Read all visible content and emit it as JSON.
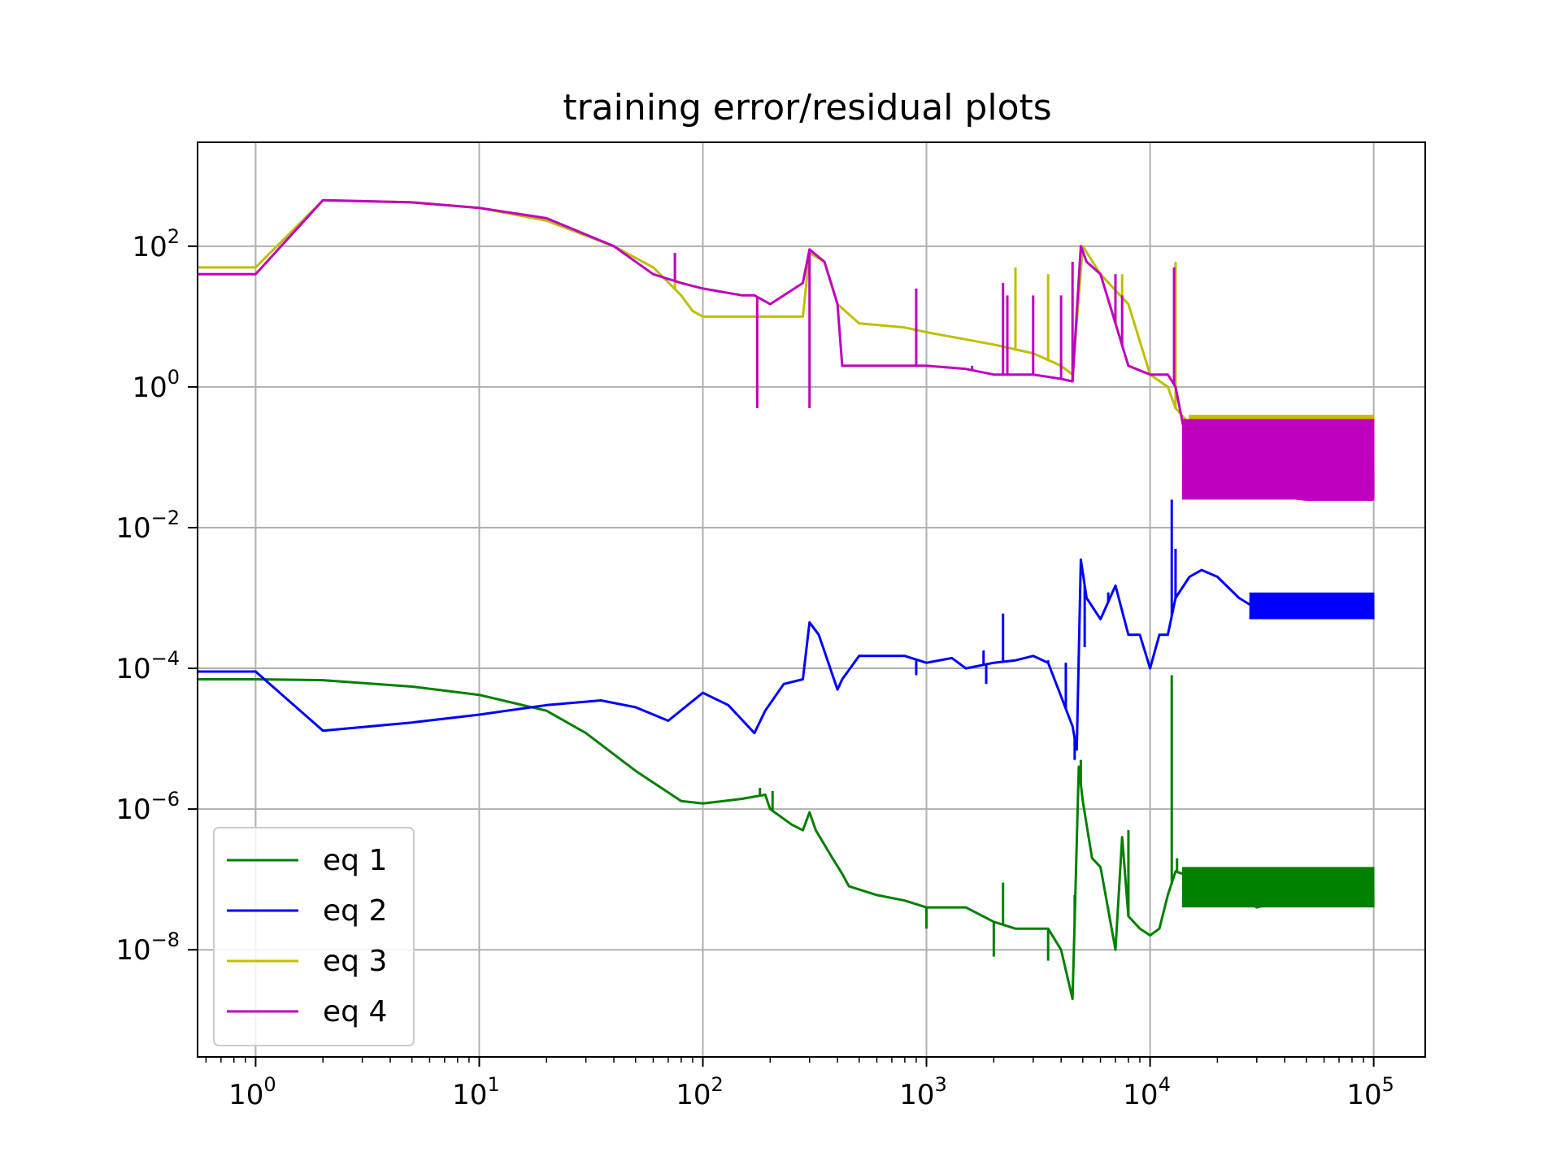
{
  "chart_data": {
    "type": "line",
    "title": "training error/residual plots",
    "xlabel": "",
    "ylabel": "",
    "xscale": "log",
    "yscale": "log",
    "xlim": [
      0.55,
      170000
    ],
    "ylim": [
      3e-10,
      3000
    ],
    "grid": true,
    "legend_position": "lower-left",
    "x_ticks": [
      {
        "value": 1,
        "base": "10",
        "exp": "0"
      },
      {
        "value": 10,
        "base": "10",
        "exp": "1"
      },
      {
        "value": 100,
        "base": "10",
        "exp": "2"
      },
      {
        "value": 1000,
        "base": "10",
        "exp": "3"
      },
      {
        "value": 10000,
        "base": "10",
        "exp": "4"
      },
      {
        "value": 100000,
        "base": "10",
        "exp": "5"
      }
    ],
    "y_ticks": [
      {
        "value": 100,
        "base": "10",
        "exp": "2"
      },
      {
        "value": 1,
        "base": "10",
        "exp": "0"
      },
      {
        "value": 0.01,
        "base": "10",
        "exp": "−2"
      },
      {
        "value": 0.0001,
        "base": "10",
        "exp": "−4"
      },
      {
        "value": 1e-06,
        "base": "10",
        "exp": "−6"
      },
      {
        "value": 1e-08,
        "base": "10",
        "exp": "−8"
      }
    ],
    "series": [
      {
        "name": "eq 1",
        "color": "#008000",
        "points": [
          [
            0.55,
            7e-05
          ],
          [
            1,
            7e-05
          ],
          [
            2,
            6.8e-05
          ],
          [
            5,
            5.5e-05
          ],
          [
            10,
            4.2e-05
          ],
          [
            20,
            2.5e-05
          ],
          [
            30,
            1.2e-05
          ],
          [
            50,
            3.5e-06
          ],
          [
            80,
            1.3e-06
          ],
          [
            100,
            1.2e-06
          ],
          [
            150,
            1.4e-06
          ],
          [
            190,
            1.6e-06
          ],
          [
            200,
            1e-06
          ],
          [
            250,
            6e-07
          ],
          [
            280,
            5e-07
          ],
          [
            300,
            9e-07
          ],
          [
            320,
            5e-07
          ],
          [
            380,
            2e-07
          ],
          [
            420,
            1.2e-07
          ],
          [
            450,
            8e-08
          ],
          [
            600,
            6e-08
          ],
          [
            800,
            5e-08
          ],
          [
            1000,
            4e-08
          ],
          [
            1500,
            4e-08
          ],
          [
            2000,
            2.5e-08
          ],
          [
            2500,
            2e-08
          ],
          [
            3000,
            2e-08
          ],
          [
            3500,
            2e-08
          ],
          [
            4000,
            1e-08
          ],
          [
            4500,
            2e-09
          ],
          [
            4800,
            4e-06
          ],
          [
            5000,
            1.3e-06
          ],
          [
            5500,
            2e-07
          ],
          [
            6000,
            1.5e-07
          ],
          [
            7000,
            1e-08
          ],
          [
            7500,
            4e-07
          ],
          [
            8000,
            3e-08
          ],
          [
            9000,
            2e-08
          ],
          [
            10000,
            1.6e-08
          ],
          [
            11000,
            2e-08
          ],
          [
            12000,
            6e-08
          ],
          [
            13000,
            1.3e-07
          ],
          [
            14000,
            1.2e-07
          ],
          [
            17000,
            1.3e-07
          ],
          [
            20000,
            1e-07
          ],
          [
            25000,
            6e-08
          ],
          [
            30000,
            4e-08
          ],
          [
            40000,
            5e-08
          ],
          [
            60000,
            6e-08
          ],
          [
            80000,
            7e-08
          ],
          [
            100000,
            7e-08
          ]
        ],
        "spikes": [
          [
            180,
            2e-06
          ],
          [
            205,
            1.8e-06
          ],
          [
            1000,
            2e-08
          ],
          [
            2000,
            8e-09
          ],
          [
            2200,
            9e-08
          ],
          [
            3500,
            7e-09
          ],
          [
            4600,
            6e-08
          ],
          [
            4900,
            5e-06
          ],
          [
            6500,
            4e-08
          ],
          [
            8000,
            5e-07
          ],
          [
            12500,
            8e-05
          ],
          [
            13200,
            2e-07
          ]
        ],
        "noise": {
          "from": 14000,
          "to": 100000,
          "low": 4e-08,
          "high": 1.5e-07
        }
      },
      {
        "name": "eq 2",
        "color": "#0000ff",
        "points": [
          [
            0.55,
            9e-05
          ],
          [
            1,
            9e-05
          ],
          [
            2,
            1.3e-05
          ],
          [
            5,
            1.7e-05
          ],
          [
            10,
            2.2e-05
          ],
          [
            20,
            3e-05
          ],
          [
            35,
            3.5e-05
          ],
          [
            50,
            2.8e-05
          ],
          [
            70,
            1.8e-05
          ],
          [
            100,
            4.5e-05
          ],
          [
            130,
            3e-05
          ],
          [
            170,
            1.2e-05
          ],
          [
            190,
            2.5e-05
          ],
          [
            230,
            6e-05
          ],
          [
            280,
            7e-05
          ],
          [
            300,
            0.00045
          ],
          [
            330,
            0.0003
          ],
          [
            400,
            5e-05
          ],
          [
            420,
            7e-05
          ],
          [
            500,
            0.00015
          ],
          [
            800,
            0.00015
          ],
          [
            1000,
            0.00012
          ],
          [
            1300,
            0.00014
          ],
          [
            1500,
            0.0001
          ],
          [
            2000,
            0.00012
          ],
          [
            2500,
            0.00013
          ],
          [
            3000,
            0.00015
          ],
          [
            3500,
            0.00012
          ],
          [
            4000,
            4e-05
          ],
          [
            4500,
            1.5e-05
          ],
          [
            4700,
            7e-06
          ],
          [
            4900,
            0.0035
          ],
          [
            5200,
            0.001
          ],
          [
            6000,
            0.0005
          ],
          [
            7000,
            0.0015
          ],
          [
            8000,
            0.0003
          ],
          [
            9000,
            0.0003
          ],
          [
            10000,
            0.0001
          ],
          [
            11000,
            0.0003
          ],
          [
            12000,
            0.0003
          ],
          [
            13000,
            0.001
          ],
          [
            15000,
            0.002
          ],
          [
            17000,
            0.0025
          ],
          [
            20000,
            0.002
          ],
          [
            25000,
            0.001
          ],
          [
            30000,
            0.0007
          ],
          [
            40000,
            0.0006
          ],
          [
            60000,
            0.0006
          ],
          [
            100000,
            0.0006
          ]
        ],
        "spikes": [
          [
            900,
            8e-05
          ],
          [
            1800,
            0.00018
          ],
          [
            1850,
            6e-05
          ],
          [
            2200,
            0.0006
          ],
          [
            3500,
            0.00013
          ],
          [
            4200,
            0.00012
          ],
          [
            4600,
            5e-06
          ],
          [
            5100,
            0.0002
          ],
          [
            6500,
            0.0012
          ],
          [
            12500,
            0.025
          ],
          [
            13000,
            0.005
          ]
        ],
        "noise": {
          "from": 28000,
          "to": 100000,
          "low": 0.0005,
          "high": 0.0012
        }
      },
      {
        "name": "eq 3",
        "color": "#bfbf00",
        "points": [
          [
            0.55,
            50
          ],
          [
            1,
            50
          ],
          [
            2,
            450
          ],
          [
            5,
            420
          ],
          [
            10,
            350
          ],
          [
            20,
            230
          ],
          [
            40,
            100
          ],
          [
            60,
            50
          ],
          [
            80,
            20
          ],
          [
            90,
            12
          ],
          [
            100,
            10
          ],
          [
            150,
            10
          ],
          [
            200,
            10
          ],
          [
            280,
            10
          ],
          [
            300,
            80
          ],
          [
            350,
            60
          ],
          [
            400,
            15
          ],
          [
            500,
            8
          ],
          [
            800,
            7
          ],
          [
            1000,
            6
          ],
          [
            2000,
            4
          ],
          [
            3000,
            3
          ],
          [
            4000,
            2
          ],
          [
            4500,
            1.5
          ],
          [
            5000,
            100
          ],
          [
            6000,
            40
          ],
          [
            8000,
            15
          ],
          [
            10000,
            1.5
          ],
          [
            12000,
            1
          ],
          [
            13000,
            0.5
          ],
          [
            15000,
            0.3
          ],
          [
            20000,
            0.3
          ],
          [
            30000,
            0.2
          ],
          [
            100000,
            0.2
          ]
        ],
        "spikes": [
          [
            75,
            80
          ],
          [
            2500,
            50
          ],
          [
            3500,
            40
          ],
          [
            7500,
            40
          ],
          [
            13000,
            60
          ]
        ],
        "noise": {
          "from": 15000,
          "to": 100000,
          "low": 0.03,
          "high": 0.4
        }
      },
      {
        "name": "eq 4",
        "color": "#bf00bf",
        "points": [
          [
            0.55,
            40
          ],
          [
            1,
            40
          ],
          [
            2,
            450
          ],
          [
            5,
            420
          ],
          [
            10,
            350
          ],
          [
            20,
            250
          ],
          [
            40,
            100
          ],
          [
            60,
            40
          ],
          [
            80,
            30
          ],
          [
            100,
            25
          ],
          [
            150,
            20
          ],
          [
            170,
            20
          ],
          [
            200,
            15
          ],
          [
            280,
            30
          ],
          [
            300,
            90
          ],
          [
            350,
            60
          ],
          [
            400,
            15
          ],
          [
            420,
            2
          ],
          [
            800,
            2
          ],
          [
            1000,
            2
          ],
          [
            1500,
            1.8
          ],
          [
            2000,
            1.5
          ],
          [
            3000,
            1.5
          ],
          [
            4000,
            1.3
          ],
          [
            4500,
            1.2
          ],
          [
            4900,
            100
          ],
          [
            5200,
            60
          ],
          [
            6000,
            40
          ],
          [
            8000,
            2
          ],
          [
            10000,
            1.5
          ],
          [
            12000,
            1.5
          ],
          [
            13000,
            1
          ],
          [
            14000,
            0.3
          ],
          [
            16000,
            0.06
          ],
          [
            20000,
            0.04
          ],
          [
            30000,
            0.03
          ],
          [
            50000,
            0.025
          ],
          [
            100000,
            0.025
          ]
        ],
        "spikes": [
          [
            75,
            80
          ],
          [
            175,
            0.5
          ],
          [
            300,
            0.5
          ],
          [
            900,
            25
          ],
          [
            1000,
            2
          ],
          [
            1600,
            2
          ],
          [
            2200,
            30
          ],
          [
            2300,
            20
          ],
          [
            3000,
            20
          ],
          [
            4000,
            20
          ],
          [
            4500,
            60
          ],
          [
            7000,
            40
          ],
          [
            7500,
            20
          ],
          [
            12800,
            50
          ]
        ],
        "noise": {
          "from": 14000,
          "to": 100000,
          "low": 0.025,
          "high": 0.35
        }
      }
    ]
  }
}
